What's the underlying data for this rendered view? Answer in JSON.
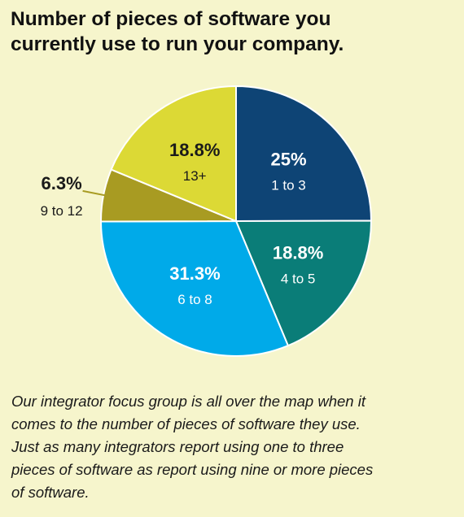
{
  "title_lines": [
    "Number of pieces of software you",
    "currently use to run your company."
  ],
  "caption_lines": [
    "Our integrator focus group is all over the map when it",
    "comes to the number of pieces of software they use.",
    "Just as many integrators report using one to three",
    "pieces of software as report using nine or more pieces",
    "of software."
  ],
  "chart_data": {
    "type": "pie",
    "title": "Number of pieces of software you currently use to run your company.",
    "slices": [
      {
        "label": "1 to 3",
        "value": 25,
        "display": "25%",
        "color": "#0e4475",
        "text_color": "#ffffff",
        "label_position": "inside"
      },
      {
        "label": "4 to 5",
        "value": 18.8,
        "display": "18.8%",
        "color": "#0a7d78",
        "text_color": "#ffffff",
        "label_position": "inside"
      },
      {
        "label": "6 to 8",
        "value": 31.3,
        "display": "31.3%",
        "color": "#00aae9",
        "text_color": "#ffffff",
        "label_position": "inside"
      },
      {
        "label": "9 to 12",
        "value": 6.3,
        "display": "6.3%",
        "color": "#a89b22",
        "text_color": "#1a1a1a",
        "label_position": "outside"
      },
      {
        "label": "13+",
        "value": 18.8,
        "display": "18.8%",
        "color": "#dcd935",
        "text_color": "#1a1a1a",
        "label_position": "inside"
      }
    ],
    "start_angle": "12 o'clock",
    "direction": "clockwise",
    "legend": "none"
  }
}
